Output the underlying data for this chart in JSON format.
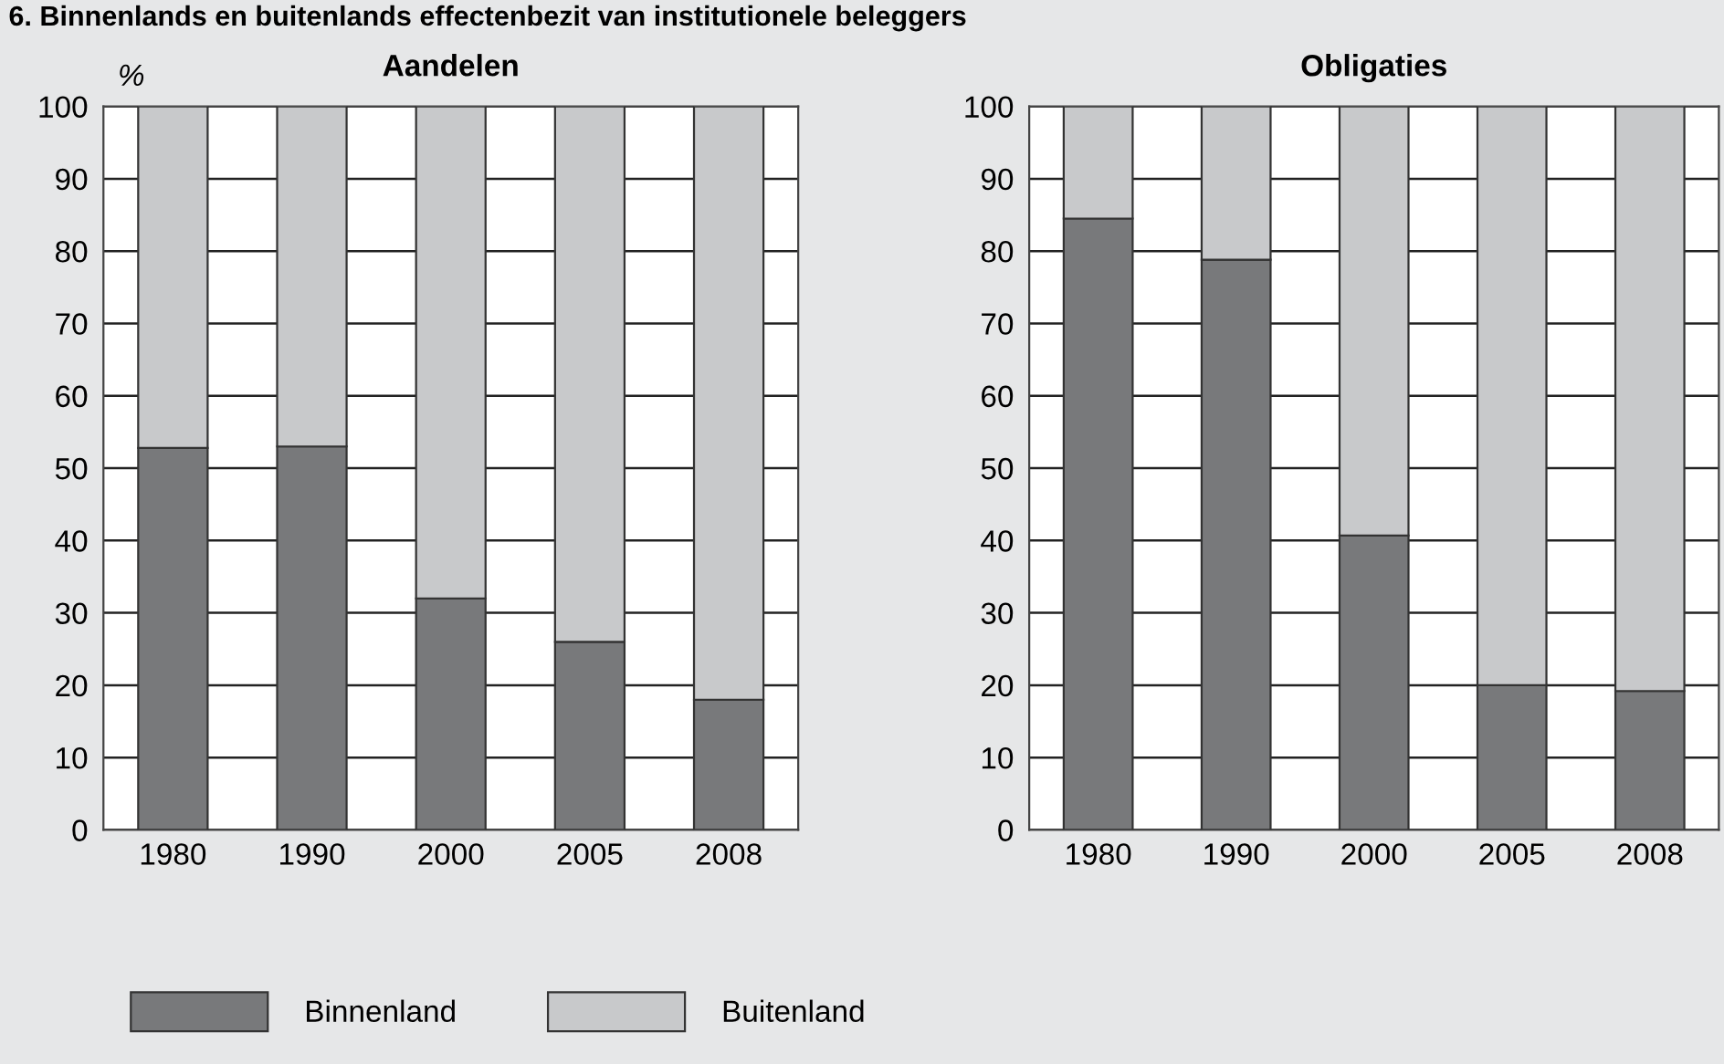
{
  "chart_data": [
    {
      "type": "bar",
      "stacked": true,
      "title": "Aandelen",
      "ylabel": "%",
      "categories": [
        "1980",
        "1990",
        "2000",
        "2005",
        "2008"
      ],
      "ylim": [
        0,
        100
      ],
      "yticks": [
        0,
        10,
        20,
        30,
        40,
        50,
        60,
        70,
        80,
        90,
        100
      ],
      "grid": "y",
      "legend": "bottom",
      "series": [
        {
          "name": "Binnenland",
          "color": "#78797b",
          "values": [
            52.8,
            53,
            32,
            26,
            18
          ]
        },
        {
          "name": "Buitenland",
          "color": "#c8c9cb",
          "values": [
            47.2,
            47,
            68,
            74,
            82
          ]
        }
      ],
      "annotations": [
        "6. Binnenlands en buitenlands effectenbezit van institutionele beleggers"
      ]
    },
    {
      "type": "bar",
      "stacked": true,
      "title": "Obligaties",
      "categories": [
        "1980",
        "1990",
        "2000",
        "2005",
        "2008"
      ],
      "ylim": [
        0,
        100
      ],
      "yticks": [
        0,
        10,
        20,
        30,
        40,
        50,
        60,
        70,
        80,
        90,
        100
      ],
      "grid": "y",
      "series": [
        {
          "color": "#78797b",
          "values": [
            84.5,
            78.8,
            40.7,
            20,
            19.2
          ]
        },
        {
          "color": "#c8c9cb",
          "values": [
            15.5,
            21.2,
            59.3,
            80,
            80.8
          ]
        }
      ]
    }
  ]
}
